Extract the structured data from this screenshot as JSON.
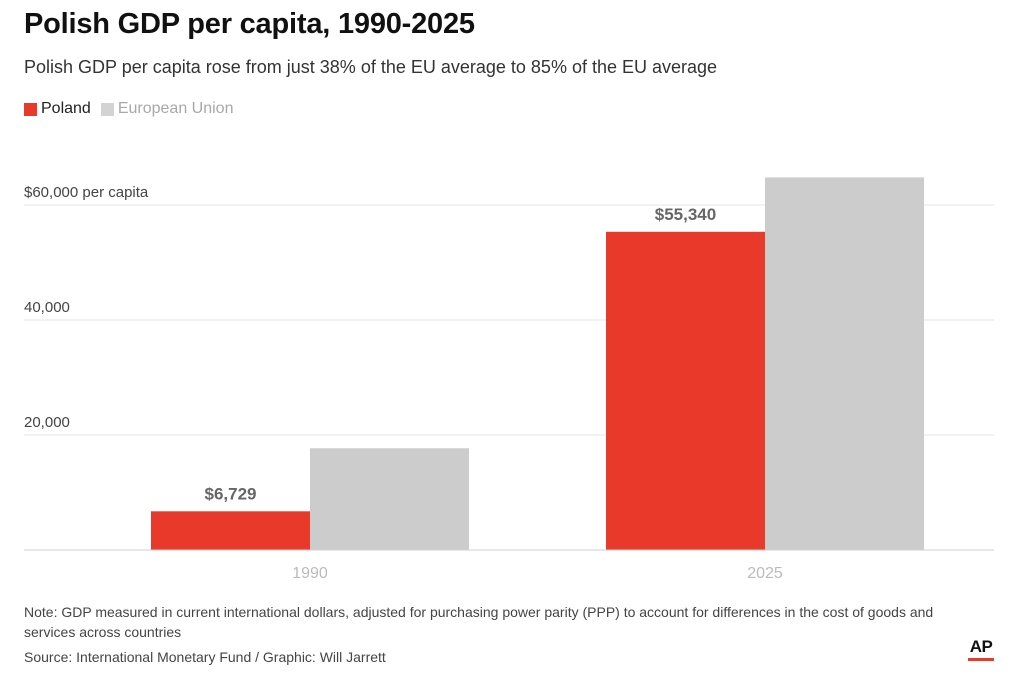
{
  "colors": {
    "poland": "#e8392a",
    "eu": "#cccccc",
    "gridline": "#e6e6e6",
    "baseline": "#cfcfcf",
    "tick_text": "#444444",
    "category_text": "#bbbbbb",
    "data_label_text": "#666666"
  },
  "chart_data": {
    "type": "bar",
    "title": "Polish GDP per capita, 1990-2025",
    "subtitle": "Polish GDP per capita rose from just 38% of the EU average to 85% of the EU average",
    "categories": [
      "1990",
      "2025"
    ],
    "series": [
      {
        "name": "Poland",
        "values": [
          6729,
          55340
        ],
        "data_labels": [
          "$6,729",
          "$55,340"
        ]
      },
      {
        "name": "European Union",
        "values": [
          17700,
          64800
        ]
      }
    ],
    "yticks": [
      {
        "value": 20000,
        "label": "20,000"
      },
      {
        "value": 40000,
        "label": "40,000"
      },
      {
        "value": 60000,
        "label": "$60,000 per capita"
      }
    ],
    "xlabel": "",
    "ylabel": "",
    "ylim": [
      0,
      70000
    ],
    "grid": true,
    "legend_position": "top-left"
  },
  "note": "Note: GDP measured in current international dollars, adjusted for purchasing power parity (PPP) to account for differences in the cost of goods and services across countries",
  "source": "Source: International Monetary Fund / Graphic: Will Jarrett",
  "logo": {
    "text": "AP"
  }
}
